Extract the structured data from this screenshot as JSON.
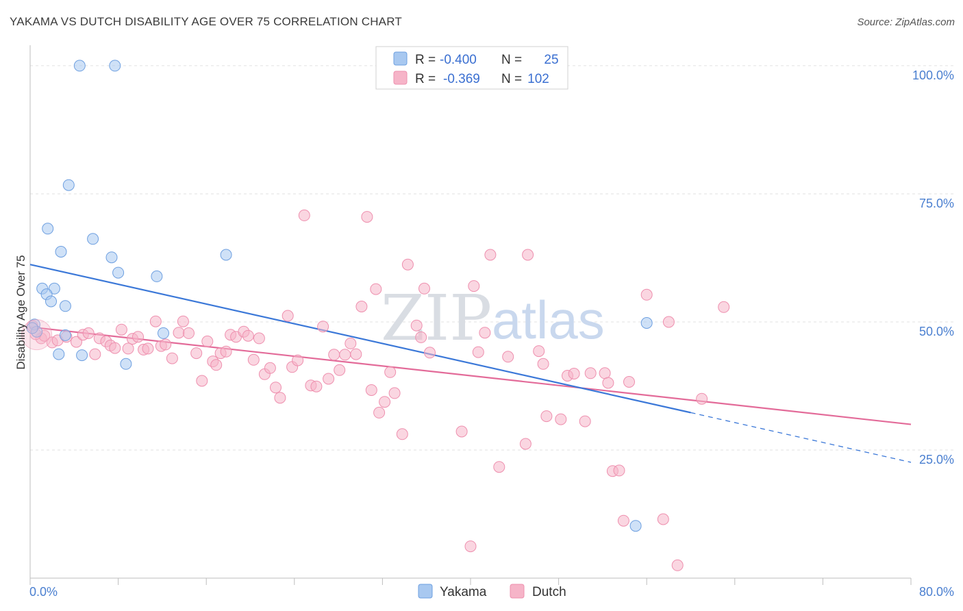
{
  "header": {
    "title": "YAKAMA VS DUTCH DISABILITY AGE OVER 75 CORRELATION CHART",
    "source": "Source: ZipAtlas.com"
  },
  "watermark": {
    "zip": "ZIP",
    "atlas": "atlas"
  },
  "legend_top": [
    {
      "r_label": "R =",
      "r_value": "-0.400",
      "n_label": "N =",
      "n_value": "25",
      "color": "#a8c8f0"
    },
    {
      "r_label": "R =",
      "r_value": "-0.369",
      "n_label": "N =",
      "n_value": "102",
      "color": "#f6b4c8"
    }
  ],
  "legend_bottom": [
    {
      "label": "Yakama",
      "color": "#a8c8f0"
    },
    {
      "label": "Dutch",
      "color": "#f6b4c8"
    }
  ],
  "chart_data": {
    "type": "scatter",
    "title": "YAKAMA VS DUTCH DISABILITY AGE OVER 75 CORRELATION CHART",
    "xlabel": "",
    "ylabel": "Disability Age Over 75",
    "xlim": [
      0,
      80
    ],
    "ylim": [
      0,
      104
    ],
    "x_tick_labels": [
      "0.0%",
      "80.0%"
    ],
    "y_ticks": [
      25,
      50,
      75,
      100
    ],
    "y_tick_labels": [
      "25.0%",
      "50.0%",
      "75.0%",
      "100.0%"
    ],
    "grid": true,
    "legend_position": "top-center",
    "series": [
      {
        "name": "Yakama",
        "color": "#a8c8f0",
        "stroke": "#6d9fe0",
        "trend_color": "#3b78d8",
        "trend": {
          "x0": 0,
          "y0": 61.2,
          "x1": 60,
          "y1": 32.3,
          "dash_to_x": 80,
          "dash_to_y": 22.6
        },
        "points": [
          [
            4.5,
            100
          ],
          [
            7.7,
            100
          ],
          [
            3.5,
            76.7
          ],
          [
            1.6,
            68.2
          ],
          [
            5.7,
            66.2
          ],
          [
            2.8,
            63.7
          ],
          [
            7.4,
            62.6
          ],
          [
            17.8,
            63.1
          ],
          [
            8.0,
            59.6
          ],
          [
            11.5,
            58.9
          ],
          [
            1.1,
            56.5
          ],
          [
            2.2,
            56.5
          ],
          [
            1.5,
            55.4
          ],
          [
            1.9,
            54.0
          ],
          [
            3.2,
            53.1
          ],
          [
            0.4,
            49.5
          ],
          [
            0.6,
            48.1
          ],
          [
            12.1,
            47.8
          ],
          [
            3.2,
            47.4
          ],
          [
            2.6,
            43.7
          ],
          [
            4.7,
            43.5
          ],
          [
            8.7,
            41.8
          ],
          [
            56.0,
            49.8
          ],
          [
            55.0,
            10.2
          ],
          [
            0.2,
            48.8
          ]
        ]
      },
      {
        "name": "Dutch",
        "color": "#f6b4c8",
        "stroke": "#ee8fae",
        "trend_color": "#e36b99",
        "trend": {
          "x0": 0,
          "y0": 49.0,
          "x1": 80,
          "y1": 30.0
        },
        "points": [
          [
            0.2,
            49.2
          ],
          [
            1.0,
            46.8
          ],
          [
            1.3,
            47.3
          ],
          [
            2.0,
            46.0
          ],
          [
            2.5,
            46.4
          ],
          [
            3.3,
            47.1
          ],
          [
            4.2,
            46.1
          ],
          [
            4.8,
            47.5
          ],
          [
            5.3,
            47.8
          ],
          [
            5.9,
            43.7
          ],
          [
            6.3,
            46.8
          ],
          [
            6.9,
            46.2
          ],
          [
            7.3,
            45.4
          ],
          [
            7.7,
            44.9
          ],
          [
            8.3,
            48.5
          ],
          [
            8.9,
            44.8
          ],
          [
            9.3,
            46.7
          ],
          [
            9.8,
            47.1
          ],
          [
            10.3,
            44.6
          ],
          [
            10.7,
            44.8
          ],
          [
            11.4,
            50.1
          ],
          [
            11.9,
            45.3
          ],
          [
            12.3,
            45.6
          ],
          [
            12.9,
            42.9
          ],
          [
            13.5,
            47.9
          ],
          [
            13.9,
            50.1
          ],
          [
            14.4,
            47.8
          ],
          [
            15.1,
            43.9
          ],
          [
            15.6,
            38.5
          ],
          [
            16.1,
            46.2
          ],
          [
            16.6,
            42.3
          ],
          [
            16.9,
            41.6
          ],
          [
            17.3,
            43.9
          ],
          [
            17.8,
            44.2
          ],
          [
            18.2,
            47.5
          ],
          [
            18.7,
            47.1
          ],
          [
            19.4,
            48.1
          ],
          [
            19.8,
            47.3
          ],
          [
            20.3,
            42.6
          ],
          [
            20.8,
            46.8
          ],
          [
            21.3,
            39.8
          ],
          [
            21.8,
            41.0
          ],
          [
            22.3,
            37.2
          ],
          [
            22.7,
            35.2
          ],
          [
            23.4,
            51.2
          ],
          [
            23.8,
            41.2
          ],
          [
            24.3,
            42.5
          ],
          [
            24.9,
            70.8
          ],
          [
            25.5,
            37.6
          ],
          [
            26.0,
            37.4
          ],
          [
            26.6,
            49.1
          ],
          [
            27.1,
            38.9
          ],
          [
            27.6,
            43.6
          ],
          [
            28.1,
            40.6
          ],
          [
            28.6,
            43.6
          ],
          [
            29.1,
            45.8
          ],
          [
            29.6,
            43.7
          ],
          [
            30.1,
            53.0
          ],
          [
            30.6,
            70.5
          ],
          [
            31.0,
            36.7
          ],
          [
            31.4,
            56.4
          ],
          [
            31.7,
            32.3
          ],
          [
            32.2,
            34.4
          ],
          [
            32.7,
            40.2
          ],
          [
            33.1,
            36.1
          ],
          [
            33.8,
            28.1
          ],
          [
            34.3,
            61.2
          ],
          [
            35.1,
            49.3
          ],
          [
            35.5,
            47.0
          ],
          [
            35.8,
            56.5
          ],
          [
            36.3,
            44.0
          ],
          [
            39.2,
            28.6
          ],
          [
            40.0,
            6.2
          ],
          [
            40.3,
            57.0
          ],
          [
            40.7,
            44.1
          ],
          [
            41.3,
            47.9
          ],
          [
            41.8,
            63.1
          ],
          [
            42.6,
            21.7
          ],
          [
            43.4,
            43.2
          ],
          [
            45.0,
            26.2
          ],
          [
            45.2,
            63.1
          ],
          [
            46.2,
            44.3
          ],
          [
            46.6,
            41.8
          ],
          [
            46.9,
            31.6
          ],
          [
            48.2,
            31.0
          ],
          [
            48.8,
            39.5
          ],
          [
            49.4,
            39.9
          ],
          [
            50.4,
            30.6
          ],
          [
            50.9,
            40.0
          ],
          [
            52.2,
            40.0
          ],
          [
            52.5,
            38.1
          ],
          [
            52.9,
            20.9
          ],
          [
            53.5,
            21.0
          ],
          [
            53.9,
            11.2
          ],
          [
            54.4,
            38.3
          ],
          [
            56.0,
            55.3
          ],
          [
            57.5,
            11.5
          ],
          [
            58.0,
            50.0
          ],
          [
            58.8,
            2.5
          ],
          [
            61.0,
            35.0
          ],
          [
            63.0,
            52.9
          ],
          [
            0.5,
            47.6
          ]
        ]
      }
    ]
  }
}
